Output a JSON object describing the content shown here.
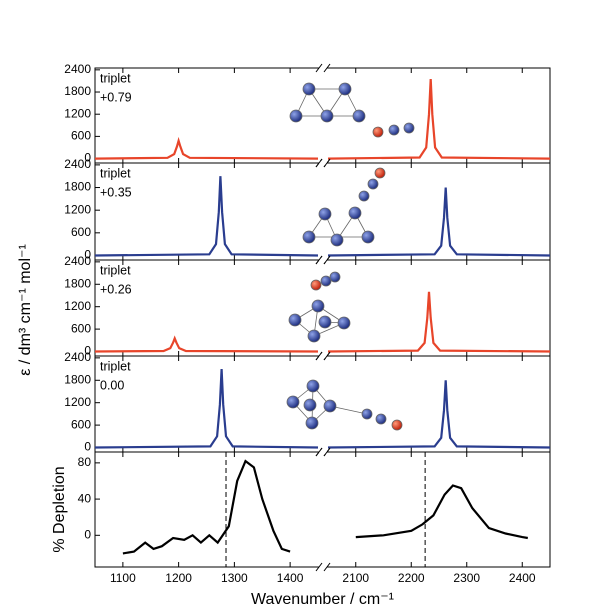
{
  "ylabel": "ε / dm³ cm⁻¹ mol⁻¹",
  "chart_data": [
    {
      "type": "line",
      "label": "triplet",
      "sublabel": "+0.79",
      "xlim": [
        1050,
        2450
      ],
      "xbreak": [
        1450,
        2050
      ],
      "xticks": [
        1100,
        1200,
        1300,
        1400,
        2100,
        2200,
        2300,
        2400
      ],
      "ylim": [
        -120,
        2450
      ],
      "yticks": [
        0,
        600,
        1200,
        1800,
        2400
      ],
      "series": [
        {
          "color": "#e8452a",
          "x": [
            1050,
            1180,
            1192,
            1197,
            1200,
            1203,
            1208,
            1220,
            1450,
            1750,
            2050,
            2215,
            2227,
            2232,
            2235,
            2238,
            2243,
            2255,
            2450
          ],
          "values": [
            0,
            20,
            120,
            330,
            480,
            330,
            120,
            20,
            0,
            null,
            0,
            30,
            300,
            1200,
            2150,
            1200,
            300,
            30,
            0
          ]
        }
      ]
    },
    {
      "type": "line",
      "label": "triplet",
      "sublabel": "+0.35",
      "xlim": [
        1050,
        2450
      ],
      "xbreak": [
        1450,
        2050
      ],
      "xticks": [
        1100,
        1200,
        1300,
        1400,
        2100,
        2200,
        2300,
        2400
      ],
      "ylim": [
        -120,
        2450
      ],
      "yticks": [
        0,
        600,
        1200,
        1800,
        2400
      ],
      "series": [
        {
          "color": "#2a3d8f",
          "x": [
            1050,
            1255,
            1267,
            1272,
            1275,
            1278,
            1283,
            1295,
            1450,
            1750,
            2050,
            2242,
            2254,
            2259,
            2262,
            2265,
            2270,
            2282,
            2450
          ],
          "values": [
            0,
            30,
            300,
            1150,
            2100,
            1150,
            300,
            30,
            0,
            null,
            0,
            30,
            260,
            1000,
            1800,
            1000,
            260,
            30,
            0
          ]
        }
      ]
    },
    {
      "type": "line",
      "label": "triplet",
      "sublabel": "+0.26",
      "xlim": [
        1050,
        2450
      ],
      "xbreak": [
        1450,
        2050
      ],
      "xticks": [
        1100,
        1200,
        1300,
        1400,
        2100,
        2200,
        2300,
        2400
      ],
      "ylim": [
        -120,
        2450
      ],
      "yticks": [
        0,
        600,
        1200,
        1800,
        2400
      ],
      "series": [
        {
          "color": "#e8452a",
          "x": [
            1050,
            1173,
            1185,
            1190,
            1193,
            1196,
            1201,
            1213,
            1450,
            1750,
            2050,
            2212,
            2224,
            2229,
            2232,
            2235,
            2240,
            2252,
            2450
          ],
          "values": [
            0,
            15,
            90,
            240,
            350,
            240,
            90,
            15,
            0,
            null,
            0,
            25,
            230,
            900,
            1600,
            900,
            230,
            25,
            0
          ]
        }
      ]
    },
    {
      "type": "line",
      "label": "triplet",
      "sublabel": "0.00",
      "xlim": [
        1050,
        2450
      ],
      "xbreak": [
        1450,
        2050
      ],
      "xticks": [
        1100,
        1200,
        1300,
        1400,
        2100,
        2200,
        2300,
        2400
      ],
      "ylim": [
        -120,
        2450
      ],
      "yticks": [
        0,
        600,
        1200,
        1800,
        2400
      ],
      "series": [
        {
          "color": "#2a3d8f",
          "x": [
            1050,
            1257,
            1269,
            1274,
            1277,
            1280,
            1285,
            1297,
            1450,
            1750,
            2050,
            2242,
            2254,
            2259,
            2262,
            2265,
            2270,
            2282,
            2450
          ],
          "values": [
            0,
            30,
            300,
            1150,
            2100,
            1150,
            300,
            30,
            0,
            null,
            0,
            30,
            260,
            1000,
            1800,
            1000,
            260,
            30,
            0
          ]
        }
      ]
    },
    {
      "type": "line",
      "ylabel": "% Depletion",
      "xlabel": "Wavenumber / cm⁻¹",
      "xlim": [
        1050,
        2450
      ],
      "xbreak": [
        1450,
        2050
      ],
      "xticks": [
        1100,
        1200,
        1300,
        1400,
        2100,
        2200,
        2300,
        2400
      ],
      "ylim": [
        -35,
        92
      ],
      "yticks": [
        0,
        40,
        80
      ],
      "vlines": [
        1285,
        2225
      ],
      "series": [
        {
          "color": "#000000",
          "x": [
            1100,
            1120,
            1140,
            1155,
            1170,
            1190,
            1210,
            1225,
            1240,
            1255,
            1270,
            1290,
            1305,
            1320,
            1335,
            1350,
            1370,
            1385,
            1400,
            1750,
            2100,
            2150,
            2200,
            2220,
            2240,
            2260,
            2275,
            2290,
            2310,
            2340,
            2370,
            2400,
            2410
          ],
          "values": [
            -20,
            -18,
            -8,
            -15,
            -12,
            -3,
            -5,
            0,
            -8,
            0,
            -8,
            10,
            60,
            82,
            75,
            40,
            5,
            -15,
            -18,
            null,
            -2,
            0,
            5,
            12,
            22,
            45,
            55,
            52,
            30,
            8,
            2,
            -2,
            -3
          ]
        }
      ]
    }
  ]
}
